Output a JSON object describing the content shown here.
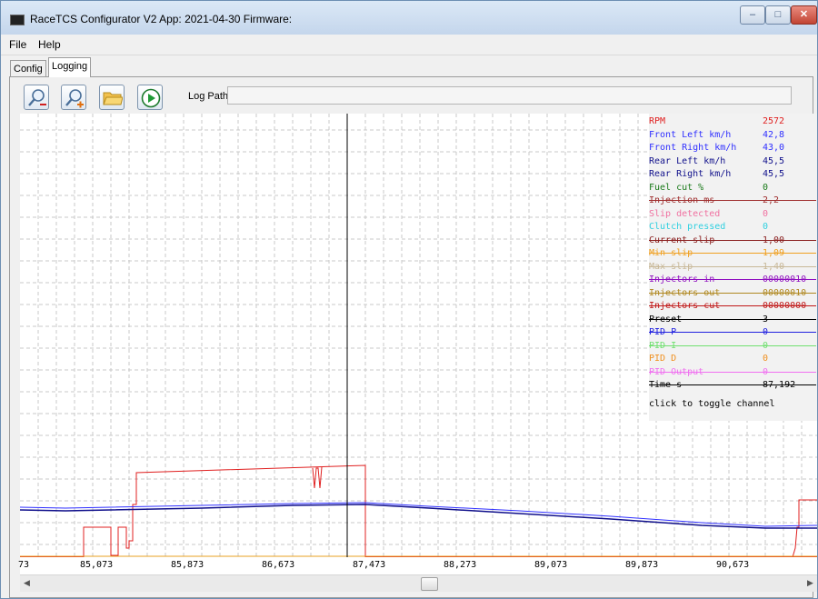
{
  "window": {
    "title": "RaceTCS Configurator V2 App: 2021-04-30 Firmware:"
  },
  "menu": [
    "File",
    "Help"
  ],
  "tabs": [
    "Config",
    "Logging"
  ],
  "toolbar": {
    "zoom_out_icon": "zoom-out-icon",
    "zoom_in_icon": "zoom-in-icon",
    "open_icon": "folder-icon",
    "play_icon": "play-icon",
    "log_path_label": "Log Path:",
    "log_path_value": ""
  },
  "legend": {
    "channels": [
      {
        "name": "RPM",
        "value": "2572",
        "color": "#e02020",
        "disabled": false
      },
      {
        "name": "Front Left km/h",
        "value": "42,8",
        "color": "#3030ff",
        "disabled": false
      },
      {
        "name": "Front Right km/h",
        "value": "43,0",
        "color": "#3030ff",
        "disabled": false
      },
      {
        "name": "Rear Left km/h",
        "value": "45,5",
        "color": "#10108b",
        "disabled": false
      },
      {
        "name": "Rear Right km/h",
        "value": "45,5",
        "color": "#10108b",
        "disabled": false
      },
      {
        "name": "Fuel cut %",
        "value": "0",
        "color": "#1a7a1a",
        "disabled": false
      },
      {
        "name": "Injection ms",
        "value": "2,2",
        "color": "#a03030",
        "disabled": true
      },
      {
        "name": "Slip detected",
        "value": "0",
        "color": "#f070a0",
        "disabled": false
      },
      {
        "name": "Clutch pressed",
        "value": "0",
        "color": "#30d0e0",
        "disabled": false
      },
      {
        "name": "Current slip",
        "value": "1,00",
        "color": "#8b2020",
        "disabled": true
      },
      {
        "name": "Min slip",
        "value": "1,09",
        "color": "#f0a020",
        "disabled": true
      },
      {
        "name": "Max slip",
        "value": "1,40",
        "color": "#c8b898",
        "disabled": true
      },
      {
        "name": "Injectors in",
        "value": "00000010",
        "color": "#9010c0",
        "disabled": true
      },
      {
        "name": "Injectors out",
        "value": "00000010",
        "color": "#b08820",
        "disabled": true
      },
      {
        "name": "Injectors cut",
        "value": "00000000",
        "color": "#c01818",
        "disabled": true
      },
      {
        "name": "Preset",
        "value": "3",
        "color": "#000000",
        "disabled": true
      },
      {
        "name": "PID P",
        "value": "0",
        "color": "#2020e0",
        "disabled": true
      },
      {
        "name": "PID I",
        "value": "0",
        "color": "#70e070",
        "disabled": true
      },
      {
        "name": "PID D",
        "value": "0",
        "color": "#f09020",
        "disabled": false
      },
      {
        "name": "PID Output",
        "value": "0",
        "color": "#f070f0",
        "disabled": true
      },
      {
        "name": "Time s",
        "value": "87,192",
        "color": "#000000",
        "disabled": true
      }
    ],
    "hint": "click to toggle channel"
  },
  "xaxis": {
    "ticks": [
      "73",
      "85,073",
      "85,873",
      "86,673",
      "87,473",
      "88,273",
      "89,073",
      "89,873",
      "90,673"
    ]
  },
  "scrollbar": {
    "left_icon": "arrow-left-icon",
    "right_icon": "arrow-right-icon"
  }
}
